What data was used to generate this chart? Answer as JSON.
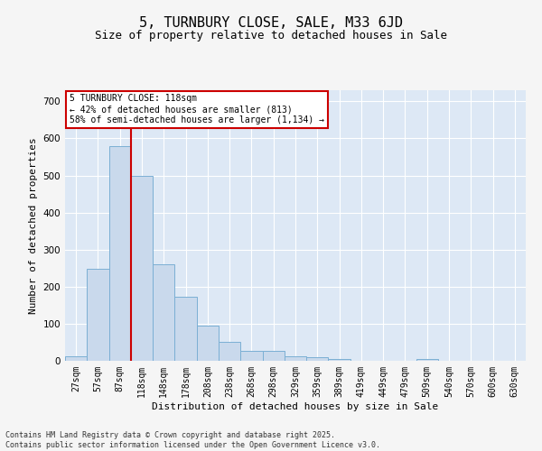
{
  "title1": "5, TURNBURY CLOSE, SALE, M33 6JD",
  "title2": "Size of property relative to detached houses in Sale",
  "xlabel": "Distribution of detached houses by size in Sale",
  "ylabel": "Number of detached properties",
  "categories": [
    "27sqm",
    "57sqm",
    "87sqm",
    "118sqm",
    "148sqm",
    "178sqm",
    "208sqm",
    "238sqm",
    "268sqm",
    "298sqm",
    "329sqm",
    "359sqm",
    "389sqm",
    "419sqm",
    "449sqm",
    "479sqm",
    "509sqm",
    "540sqm",
    "570sqm",
    "600sqm",
    "630sqm"
  ],
  "values": [
    12,
    247,
    580,
    500,
    260,
    172,
    95,
    50,
    27,
    27,
    12,
    10,
    5,
    0,
    0,
    0,
    5,
    0,
    0,
    0,
    0
  ],
  "bar_color": "#c9d9ec",
  "bar_edge_color": "#7bafd4",
  "vline_color": "#cc0000",
  "annotation_lines": [
    "5 TURNBURY CLOSE: 118sqm",
    "← 42% of detached houses are smaller (813)",
    "58% of semi-detached houses are larger (1,134) →"
  ],
  "annotation_box_color": "#cc0000",
  "ylim": [
    0,
    730
  ],
  "yticks": [
    0,
    100,
    200,
    300,
    400,
    500,
    600,
    700
  ],
  "plot_bg_color": "#dde8f5",
  "fig_bg_color": "#f5f5f5",
  "grid_color": "#ffffff",
  "footer1": "Contains HM Land Registry data © Crown copyright and database right 2025.",
  "footer2": "Contains public sector information licensed under the Open Government Licence v3.0.",
  "title_fontsize": 11,
  "subtitle_fontsize": 9,
  "tick_fontsize": 7,
  "ylabel_fontsize": 8,
  "xlabel_fontsize": 8,
  "annotation_fontsize": 7,
  "footer_fontsize": 6
}
